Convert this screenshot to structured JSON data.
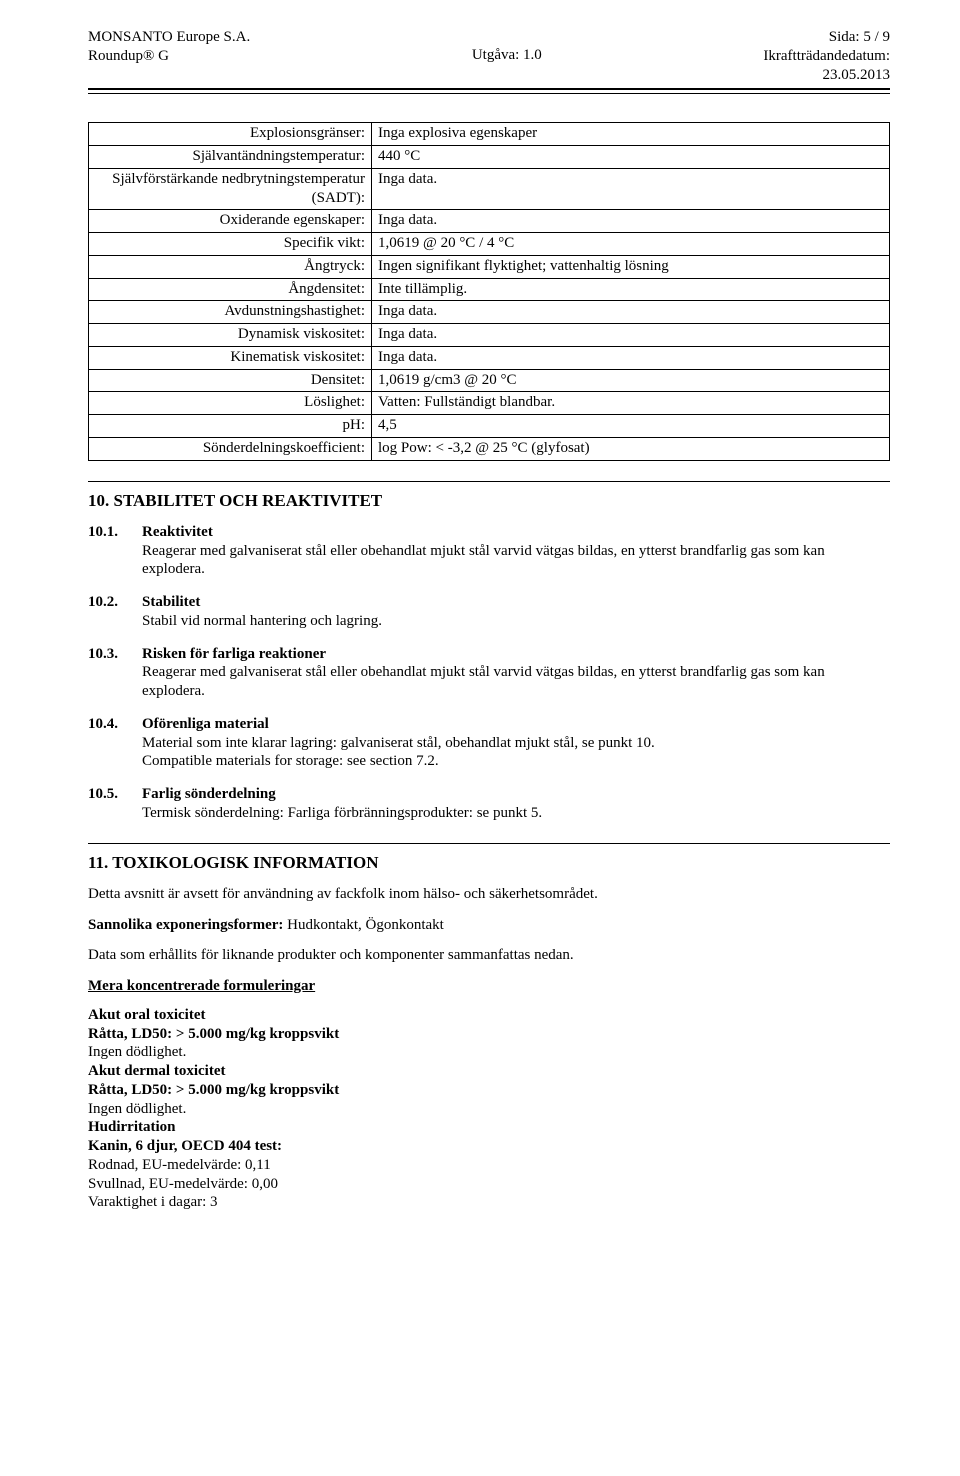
{
  "header": {
    "company": "MONSANTO Europe S.A.",
    "product": "Roundup® G",
    "center": "Utgåva: 1.0",
    "page": "Sida: 5 / 9",
    "effective_label": "Ikraftträdandedatum:",
    "effective_date": "23.05.2013"
  },
  "props": [
    {
      "label": "Explosionsgränser:",
      "value": "Inga explosiva egenskaper"
    },
    {
      "label": "Självantändningstemperatur:",
      "value": "440 °C"
    },
    {
      "label": "Självförstärkande nedbrytningstemperatur (SADT):",
      "value": "Inga data."
    },
    {
      "label": "Oxiderande egenskaper:",
      "value": "Inga data."
    },
    {
      "label": "Specifik vikt:",
      "value": "1,0619 @ 20 °C / 4 °C"
    },
    {
      "label": "Ångtryck:",
      "value": "Ingen signifikant flyktighet; vattenhaltig lösning"
    },
    {
      "label": "Ångdensitet:",
      "value": "Inte tillämplig."
    },
    {
      "label": "Avdunstningshastighet:",
      "value": "Inga data."
    },
    {
      "label": "Dynamisk viskositet:",
      "value": "Inga data."
    },
    {
      "label": "Kinematisk viskositet:",
      "value": "Inga data."
    },
    {
      "label": "Densitet:",
      "value": "1,0619 g/cm3 @ 20 °C"
    },
    {
      "label": "Löslighet:",
      "value": "Vatten: Fullständigt blandbar."
    },
    {
      "label": "pH:",
      "value": "4,5"
    },
    {
      "label": "Sönderdelningskoefficient:",
      "value": "log Pow: < -3,2 @ 25 °C (glyfosat)"
    }
  ],
  "section10": {
    "title": "10. STABILITET OCH REAKTIVITET",
    "items": [
      {
        "n": "10.1.",
        "lead": "Reaktivitet",
        "text": "Reagerar med galvaniserat stål eller obehandlat mjukt stål varvid vätgas bildas, en ytterst brandfarlig gas som kan explodera."
      },
      {
        "n": "10.2.",
        "lead": "Stabilitet",
        "text": "Stabil vid normal hantering och lagring."
      },
      {
        "n": "10.3.",
        "lead": "Risken för farliga reaktioner",
        "text": "Reagerar med galvaniserat stål eller obehandlat mjukt stål varvid vätgas bildas, en ytterst brandfarlig gas som kan explodera."
      },
      {
        "n": "10.4.",
        "lead": "Oförenliga material",
        "text": "Material som inte klarar lagring: galvaniserat stål, obehandlat mjukt stål, se punkt 10.\nCompatible materials for storage: see section 7.2."
      },
      {
        "n": "10.5.",
        "lead": "Farlig sönderdelning",
        "text": "Termisk sönderdelning: Farliga förbränningsprodukter: se punkt 5."
      }
    ]
  },
  "section11": {
    "title": "11. TOXIKOLOGISK INFORMATION",
    "p1": "Detta avsnitt är avsett för användning av fackfolk inom hälso- och säkerhetsområdet.",
    "p2_label": "Sannolika exponeringsformer:",
    "p2_value": " Hudkontakt, Ögonkontakt",
    "p3": "Data som erhållits för liknande produkter och komponenter sammanfattas nedan.",
    "more_conc": "Mera koncentrerade formuleringar",
    "acute_oral_title": "Akut oral toxicitet",
    "acute_oral_line1": "Råtta, LD50: > 5.000 mg/kg kroppsvikt",
    "acute_oral_line2": "Ingen dödlighet.",
    "acute_dermal_title": "Akut dermal toxicitet",
    "acute_dermal_line1": "Råtta, LD50: > 5.000 mg/kg kroppsvikt",
    "acute_dermal_line2": "Ingen dödlighet.",
    "skin_title": "Hudirritation",
    "skin_line1": "Kanin, 6 djur, OECD 404 test:",
    "skin_line2": "Rodnad, EU-medelvärde: 0,11",
    "skin_line3": "Svullnad, EU-medelvärde: 0,00",
    "skin_line4": "Varaktighet i dagar: 3"
  }
}
